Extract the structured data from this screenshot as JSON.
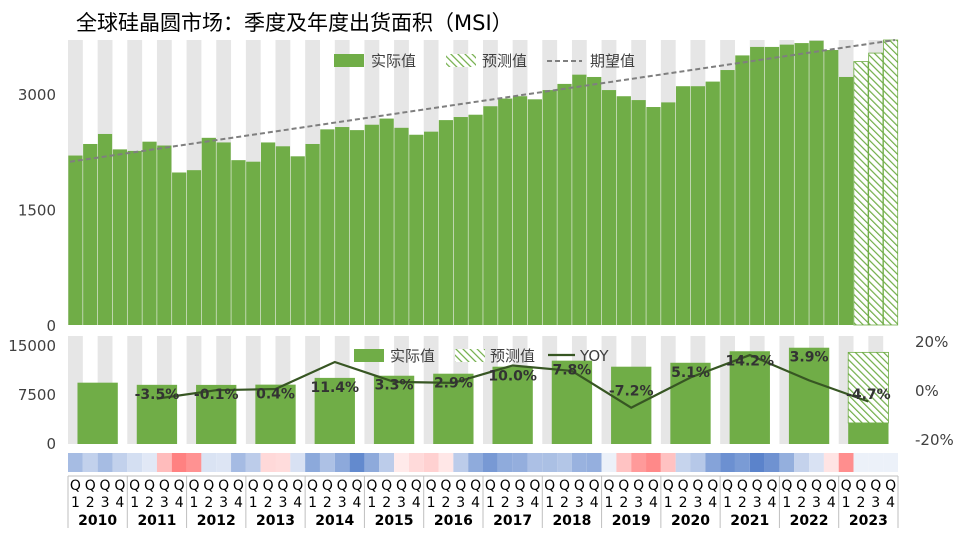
{
  "chart_data": [
    {
      "type": "bar",
      "title": "全球硅晶圆市场：季度及年度出货面积（MSI）",
      "y_ticks": [
        0,
        1500,
        3000
      ],
      "ylim": [
        0,
        3700
      ],
      "legend": {
        "actual": "实际值",
        "forecast": "预测值",
        "expected": "期望值",
        "placement": "top-center"
      },
      "actual_values": [
        2200,
        2350,
        2480,
        2280,
        2260,
        2380,
        2330,
        1980,
        2010,
        2430,
        2370,
        2140,
        2120,
        2370,
        2320,
        2190,
        2350,
        2540,
        2570,
        2530,
        2600,
        2680,
        2560,
        2470,
        2510,
        2660,
        2700,
        2730,
        2840,
        2940,
        2970,
        2930,
        3050,
        3130,
        3250,
        3220,
        3050,
        2970,
        2920,
        2830,
        2890,
        3100,
        3100,
        3160,
        3310,
        3500,
        3610,
        3610,
        3640,
        3660,
        3690,
        3570,
        3220
      ],
      "forecast_values": [
        3420,
        3530,
        3700
      ],
      "expected_line": {
        "start": 2120,
        "end": 3700
      }
    },
    {
      "type": "bar",
      "y_ticks_left": [
        0,
        7500,
        15000
      ],
      "y_ticks_right": [
        "20%",
        "0%",
        "-20%"
      ],
      "ylim_left": [
        0,
        16500
      ],
      "ylim_right": [
        -22,
        22
      ],
      "legend": {
        "actual": "实际值",
        "forecast": "预测值",
        "yoy": "YOY"
      },
      "years": [
        "2010",
        "2011",
        "2012",
        "2013",
        "2014",
        "2015",
        "2016",
        "2017",
        "2018",
        "2019",
        "2020",
        "2021",
        "2022",
        "2023"
      ],
      "annual_values": [
        9370,
        9040,
        9030,
        9070,
        10100,
        10430,
        10740,
        11810,
        12730,
        11810,
        12410,
        14170,
        14710,
        3220
      ],
      "forecast_annual": [
        14000
      ],
      "yoy_values": [
        null,
        -3.5,
        -0.1,
        0.4,
        11.4,
        3.3,
        2.9,
        10.0,
        7.8,
        -7.2,
        5.1,
        14.2,
        3.9,
        -4.7
      ],
      "yoy_labels": [
        "",
        "-3.5%",
        "-0.1%",
        "0.4%",
        "11.4%",
        "3.3%",
        "2.9%",
        "10.0%",
        "7.8%",
        "-7.2%",
        "5.1%",
        "14.2%",
        "3.9%",
        "-4.7%"
      ]
    }
  ],
  "quarter_letter": "Q",
  "quarter_numbers": [
    "1",
    "2",
    "3",
    "4"
  ],
  "colors": {
    "actual": "#70ad47",
    "expected_line": "#7f7f7f",
    "yoy_line": "#375623",
    "stripe": "#e6e6e6",
    "heat_positive": "#4472c4",
    "heat_negative": "#ff5050"
  }
}
